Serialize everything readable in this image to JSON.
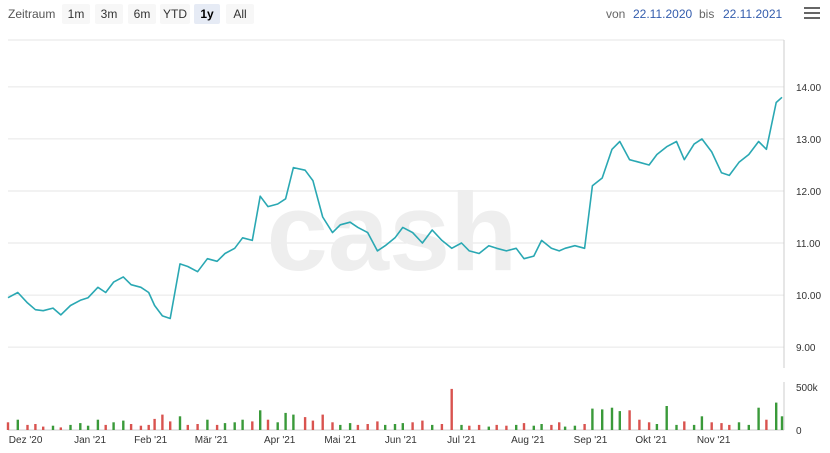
{
  "toolbar": {
    "zoom_label": "Zeitraum",
    "ranges": [
      "1m",
      "3m",
      "6m",
      "YTD",
      "1y",
      "All"
    ],
    "active_range": "1y",
    "from_label": "von",
    "from_date": "22.11.2020",
    "to_label": "bis",
    "to_date": "22.11.2021",
    "menu_icon": "hamburger-menu-icon"
  },
  "watermark": "cash",
  "colors": {
    "line": "#2aa8b3",
    "volume_up": "#3a9a3a",
    "volume_down": "#d9534f"
  },
  "chart_data": [
    {
      "type": "line",
      "title": "",
      "y_ticks": [
        "9.00",
        "10.00",
        "11.00",
        "12.00",
        "13.00",
        "14.00"
      ],
      "ylim": [
        8.6,
        14.9
      ],
      "x_ticks": [
        "Dez '20",
        "Jan '21",
        "Feb '21",
        "Mär '21",
        "Apr '21",
        "Mai '21",
        "Jun '21",
        "Jul '21",
        "Aug '21",
        "Sep '21",
        "Okt '21",
        "Nov '21"
      ],
      "x_tick_pos": [
        0.9,
        4.2,
        7.3,
        10.4,
        13.9,
        17.0,
        20.1,
        23.2,
        26.6,
        29.8,
        32.9,
        36.1
      ],
      "xlim": [
        0,
        39.7
      ],
      "grid": true,
      "series": [
        {
          "x": [
            0.0,
            0.5,
            1.0,
            1.4,
            1.8,
            2.3,
            2.7,
            3.2,
            3.7,
            4.1,
            4.6,
            5.0,
            5.4,
            5.9,
            6.3,
            6.8,
            7.2,
            7.5,
            7.9,
            8.3,
            8.8,
            9.2,
            9.7,
            10.2,
            10.7,
            11.1,
            11.6,
            12.0,
            12.5,
            12.9,
            13.3,
            13.8,
            14.2,
            14.6,
            15.2,
            15.6,
            16.1,
            16.6,
            17.0,
            17.5,
            17.9,
            18.4,
            18.9,
            19.3,
            19.8,
            20.2,
            20.7,
            21.2,
            21.7,
            22.2,
            22.7,
            23.2,
            23.6,
            24.1,
            24.6,
            25.0,
            25.5,
            26.0,
            26.4,
            26.9,
            27.3,
            27.8,
            28.2,
            28.5,
            29.0,
            29.5,
            29.9,
            30.4,
            30.9,
            31.3,
            31.8,
            32.3,
            32.8,
            33.2,
            33.7,
            34.2,
            34.6,
            35.1,
            35.5,
            36.0,
            36.5,
            36.9,
            37.4,
            37.9,
            38.4,
            38.8,
            39.3,
            39.6
          ],
          "values": [
            9.95,
            10.05,
            9.85,
            9.72,
            9.7,
            9.75,
            9.62,
            9.8,
            9.9,
            9.95,
            10.15,
            10.05,
            10.25,
            10.35,
            10.2,
            10.15,
            10.05,
            9.8,
            9.6,
            9.55,
            10.6,
            10.55,
            10.45,
            10.7,
            10.65,
            10.8,
            10.9,
            11.1,
            11.05,
            11.9,
            11.7,
            11.75,
            11.85,
            12.45,
            12.4,
            12.2,
            11.5,
            11.2,
            11.35,
            11.4,
            11.3,
            11.2,
            10.85,
            10.95,
            11.1,
            11.3,
            11.2,
            11.0,
            11.25,
            11.05,
            10.9,
            11.0,
            10.85,
            10.8,
            10.95,
            10.9,
            10.85,
            10.9,
            10.7,
            10.75,
            11.05,
            10.9,
            10.85,
            10.9,
            10.95,
            10.9,
            12.1,
            12.25,
            12.8,
            12.95,
            12.6,
            12.55,
            12.5,
            12.7,
            12.85,
            12.95,
            12.6,
            12.9,
            13.0,
            12.75,
            12.35,
            12.3,
            12.55,
            12.7,
            12.95,
            12.8,
            13.7,
            13.8
          ]
        }
      ]
    },
    {
      "type": "bar",
      "title": "",
      "y_ticks": [
        "0",
        "500k"
      ],
      "ylim": [
        0,
        560000
      ],
      "colors_by_direction": true,
      "series": [
        {
          "x": [
            0.0,
            0.5,
            1.0,
            1.4,
            1.8,
            2.3,
            2.7,
            3.2,
            3.7,
            4.1,
            4.6,
            5.0,
            5.4,
            5.9,
            6.3,
            6.8,
            7.2,
            7.5,
            7.9,
            8.3,
            8.8,
            9.2,
            9.7,
            10.2,
            10.7,
            11.1,
            11.6,
            12.0,
            12.5,
            12.9,
            13.3,
            13.8,
            14.2,
            14.6,
            15.2,
            15.6,
            16.1,
            16.6,
            17.0,
            17.5,
            17.9,
            18.4,
            18.9,
            19.3,
            19.8,
            20.2,
            20.7,
            21.2,
            21.7,
            22.2,
            22.7,
            23.2,
            23.6,
            24.1,
            24.6,
            25.0,
            25.5,
            26.0,
            26.4,
            26.9,
            27.3,
            27.8,
            28.2,
            28.5,
            29.0,
            29.5,
            29.9,
            30.4,
            30.9,
            31.3,
            31.8,
            32.3,
            32.8,
            33.2,
            33.7,
            34.2,
            34.6,
            35.1,
            35.5,
            36.0,
            36.5,
            36.9,
            37.4,
            37.9,
            38.4,
            38.8,
            39.3,
            39.6
          ],
          "values": [
            90000,
            120000,
            60000,
            70000,
            40000,
            50000,
            30000,
            60000,
            80000,
            50000,
            120000,
            60000,
            90000,
            110000,
            70000,
            50000,
            60000,
            130000,
            180000,
            100000,
            160000,
            60000,
            70000,
            120000,
            60000,
            80000,
            90000,
            120000,
            100000,
            230000,
            120000,
            90000,
            200000,
            180000,
            150000,
            110000,
            180000,
            90000,
            60000,
            80000,
            60000,
            70000,
            100000,
            60000,
            70000,
            80000,
            90000,
            110000,
            60000,
            70000,
            480000,
            60000,
            50000,
            60000,
            40000,
            60000,
            50000,
            60000,
            80000,
            50000,
            70000,
            60000,
            90000,
            40000,
            50000,
            70000,
            250000,
            240000,
            260000,
            220000,
            230000,
            120000,
            90000,
            70000,
            280000,
            60000,
            100000,
            60000,
            160000,
            90000,
            80000,
            60000,
            90000,
            60000,
            260000,
            120000,
            320000,
            160000
          ],
          "up": [
            false,
            true,
            false,
            false,
            false,
            true,
            false,
            true,
            true,
            true,
            true,
            false,
            true,
            true,
            false,
            false,
            false,
            false,
            false,
            false,
            true,
            false,
            false,
            true,
            false,
            true,
            true,
            true,
            false,
            true,
            false,
            true,
            true,
            true,
            false,
            false,
            false,
            false,
            true,
            true,
            false,
            false,
            false,
            true,
            true,
            true,
            false,
            false,
            true,
            false,
            false,
            true,
            false,
            false,
            true,
            false,
            false,
            true,
            false,
            true,
            true,
            false,
            false,
            true,
            true,
            false,
            true,
            true,
            true,
            true,
            false,
            false,
            false,
            true,
            true,
            true,
            false,
            true,
            true,
            false,
            false,
            false,
            true,
            true,
            true,
            false,
            true,
            true
          ]
        }
      ]
    }
  ]
}
